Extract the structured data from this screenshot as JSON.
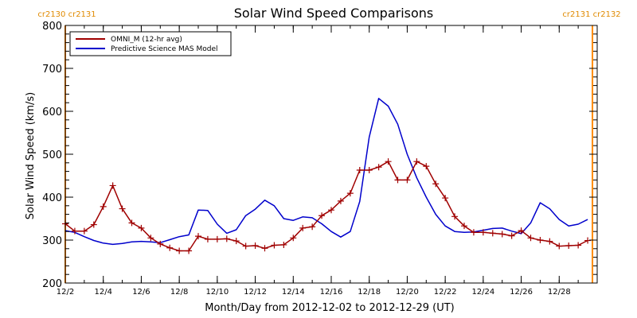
{
  "chart_data": {
    "type": "line",
    "title": "Solar Wind Speed Comparisons",
    "xlabel": "Month/Day from 2012-12-02 to 2012-12-29 (UT)",
    "ylabel": "Solar Wind Speed (km/s)",
    "xlim": [
      "2012-12-02",
      "2012-12-30"
    ],
    "ylim": [
      200,
      800
    ],
    "yticks": [
      200,
      300,
      400,
      500,
      600,
      700,
      800
    ],
    "xticks": [
      {
        "date": "2012-12-02",
        "label": "12/2"
      },
      {
        "date": "2012-12-04",
        "label": "12/4"
      },
      {
        "date": "2012-12-06",
        "label": "12/6"
      },
      {
        "date": "2012-12-08",
        "label": "12/8"
      },
      {
        "date": "2012-12-10",
        "label": "12/10"
      },
      {
        "date": "2012-12-12",
        "label": "12/12"
      },
      {
        "date": "2012-12-14",
        "label": "12/14"
      },
      {
        "date": "2012-12-16",
        "label": "12/16"
      },
      {
        "date": "2012-12-18",
        "label": "12/18"
      },
      {
        "date": "2012-12-20",
        "label": "12/20"
      },
      {
        "date": "2012-12-22",
        "label": "12/22"
      },
      {
        "date": "2012-12-24",
        "label": "12/24"
      },
      {
        "date": "2012-12-26",
        "label": "12/26"
      },
      {
        "date": "2012-12-28",
        "label": "12/28"
      }
    ],
    "legend_position": "top-left",
    "grid": false,
    "series": [
      {
        "name": "OMNI_M (12-hr avg)",
        "color": "#a00000",
        "marker": "plus",
        "points": [
          [
            "2012-12-02T00:00",
            338
          ],
          [
            "2012-12-02T12:00",
            321
          ],
          [
            "2012-12-03T00:00",
            321
          ],
          [
            "2012-12-03T12:00",
            336
          ],
          [
            "2012-12-04T00:00",
            378
          ],
          [
            "2012-12-04T12:00",
            427
          ],
          [
            "2012-12-05T00:00",
            373
          ],
          [
            "2012-12-05T12:00",
            340
          ],
          [
            "2012-12-06T00:00",
            328
          ],
          [
            "2012-12-06T12:00",
            305
          ],
          [
            "2012-12-07T00:00",
            291
          ],
          [
            "2012-12-07T12:00",
            282
          ],
          [
            "2012-12-08T00:00",
            275
          ],
          [
            "2012-12-08T12:00",
            275
          ],
          [
            "2012-12-09T00:00",
            309
          ],
          [
            "2012-12-09T12:00",
            302
          ],
          [
            "2012-12-10T00:00",
            302
          ],
          [
            "2012-12-10T12:00",
            303
          ],
          [
            "2012-12-11T00:00",
            298
          ],
          [
            "2012-12-11T12:00",
            286
          ],
          [
            "2012-12-12T00:00",
            287
          ],
          [
            "2012-12-12T12:00",
            281
          ],
          [
            "2012-12-13T00:00",
            288
          ],
          [
            "2012-12-13T12:00",
            289
          ],
          [
            "2012-12-14T00:00",
            305
          ],
          [
            "2012-12-14T12:00",
            328
          ],
          [
            "2012-12-15T00:00",
            331
          ],
          [
            "2012-12-15T12:00",
            357
          ],
          [
            "2012-12-16T00:00",
            370
          ],
          [
            "2012-12-16T12:00",
            391
          ],
          [
            "2012-12-17T00:00",
            409
          ],
          [
            "2012-12-17T12:00",
            463
          ],
          [
            "2012-12-18T00:00",
            463
          ],
          [
            "2012-12-18T12:00",
            470
          ],
          [
            "2012-12-19T00:00",
            483
          ],
          [
            "2012-12-19T12:00",
            440
          ],
          [
            "2012-12-20T00:00",
            440
          ],
          [
            "2012-12-20T12:00",
            483
          ],
          [
            "2012-12-21T00:00",
            472
          ],
          [
            "2012-12-21T12:00",
            431
          ],
          [
            "2012-12-22T00:00",
            398
          ],
          [
            "2012-12-22T12:00",
            355
          ],
          [
            "2012-12-23T00:00",
            333
          ],
          [
            "2012-12-23T12:00",
            318
          ],
          [
            "2012-12-24T00:00",
            318
          ],
          [
            "2012-12-24T12:00",
            316
          ],
          [
            "2012-12-25T00:00",
            314
          ],
          [
            "2012-12-25T12:00",
            310
          ],
          [
            "2012-12-26T00:00",
            322
          ],
          [
            "2012-12-26T12:00",
            305
          ],
          [
            "2012-12-27T00:00",
            300
          ],
          [
            "2012-12-27T12:00",
            297
          ],
          [
            "2012-12-28T00:00",
            286
          ],
          [
            "2012-12-28T12:00",
            287
          ],
          [
            "2012-12-29T00:00",
            288
          ],
          [
            "2012-12-29T12:00",
            299
          ]
        ]
      },
      {
        "name": "Predictive Science MAS Model",
        "color": "#0000cc",
        "marker": "none",
        "points": [
          [
            "2012-12-02T00:00",
            322
          ],
          [
            "2012-12-02T12:00",
            318
          ],
          [
            "2012-12-03T00:00",
            308
          ],
          [
            "2012-12-03T12:00",
            299
          ],
          [
            "2012-12-04T00:00",
            293
          ],
          [
            "2012-12-04T12:00",
            290
          ],
          [
            "2012-12-05T00:00",
            292
          ],
          [
            "2012-12-05T12:00",
            296
          ],
          [
            "2012-12-06T00:00",
            297
          ],
          [
            "2012-12-06T12:00",
            296
          ],
          [
            "2012-12-07T00:00",
            294
          ],
          [
            "2012-12-07T12:00",
            301
          ],
          [
            "2012-12-08T00:00",
            308
          ],
          [
            "2012-12-08T12:00",
            312
          ],
          [
            "2012-12-09T00:00",
            370
          ],
          [
            "2012-12-09T12:00",
            369
          ],
          [
            "2012-12-10T00:00",
            337
          ],
          [
            "2012-12-10T12:00",
            316
          ],
          [
            "2012-12-11T00:00",
            324
          ],
          [
            "2012-12-11T12:00",
            357
          ],
          [
            "2012-12-12T00:00",
            372
          ],
          [
            "2012-12-12T12:00",
            393
          ],
          [
            "2012-12-13T00:00",
            380
          ],
          [
            "2012-12-13T12:00",
            350
          ],
          [
            "2012-12-14T00:00",
            346
          ],
          [
            "2012-12-14T12:00",
            354
          ],
          [
            "2012-12-15T00:00",
            352
          ],
          [
            "2012-12-15T12:00",
            338
          ],
          [
            "2012-12-16T00:00",
            320
          ],
          [
            "2012-12-16T12:00",
            307
          ],
          [
            "2012-12-17T00:00",
            320
          ],
          [
            "2012-12-17T12:00",
            390
          ],
          [
            "2012-12-18T00:00",
            540
          ],
          [
            "2012-12-18T12:00",
            630
          ],
          [
            "2012-12-19T00:00",
            612
          ],
          [
            "2012-12-19T12:00",
            570
          ],
          [
            "2012-12-20T00:00",
            500
          ],
          [
            "2012-12-20T12:00",
            445
          ],
          [
            "2012-12-21T00:00",
            400
          ],
          [
            "2012-12-21T12:00",
            360
          ],
          [
            "2012-12-22T00:00",
            333
          ],
          [
            "2012-12-22T12:00",
            320
          ],
          [
            "2012-12-23T00:00",
            318
          ],
          [
            "2012-12-23T12:00",
            319
          ],
          [
            "2012-12-24T00:00",
            323
          ],
          [
            "2012-12-24T12:00",
            327
          ],
          [
            "2012-12-25T00:00",
            328
          ],
          [
            "2012-12-25T12:00",
            321
          ],
          [
            "2012-12-26T00:00",
            315
          ],
          [
            "2012-12-26T12:00",
            340
          ],
          [
            "2012-12-27T00:00",
            387
          ],
          [
            "2012-12-27T12:00",
            373
          ],
          [
            "2012-12-28T00:00",
            348
          ],
          [
            "2012-12-28T12:00",
            333
          ],
          [
            "2012-12-29T00:00",
            337
          ],
          [
            "2012-12-29T12:00",
            348
          ]
        ]
      }
    ],
    "carrington_markers": [
      {
        "date": "2012-12-02",
        "labels": [
          "cr2130",
          "cr2131"
        ],
        "color": "#ff8c00"
      },
      {
        "date": "2012-12-29T18:00",
        "labels": [
          "cr2131",
          "cr2132"
        ],
        "color": "#ff8c00"
      }
    ]
  }
}
